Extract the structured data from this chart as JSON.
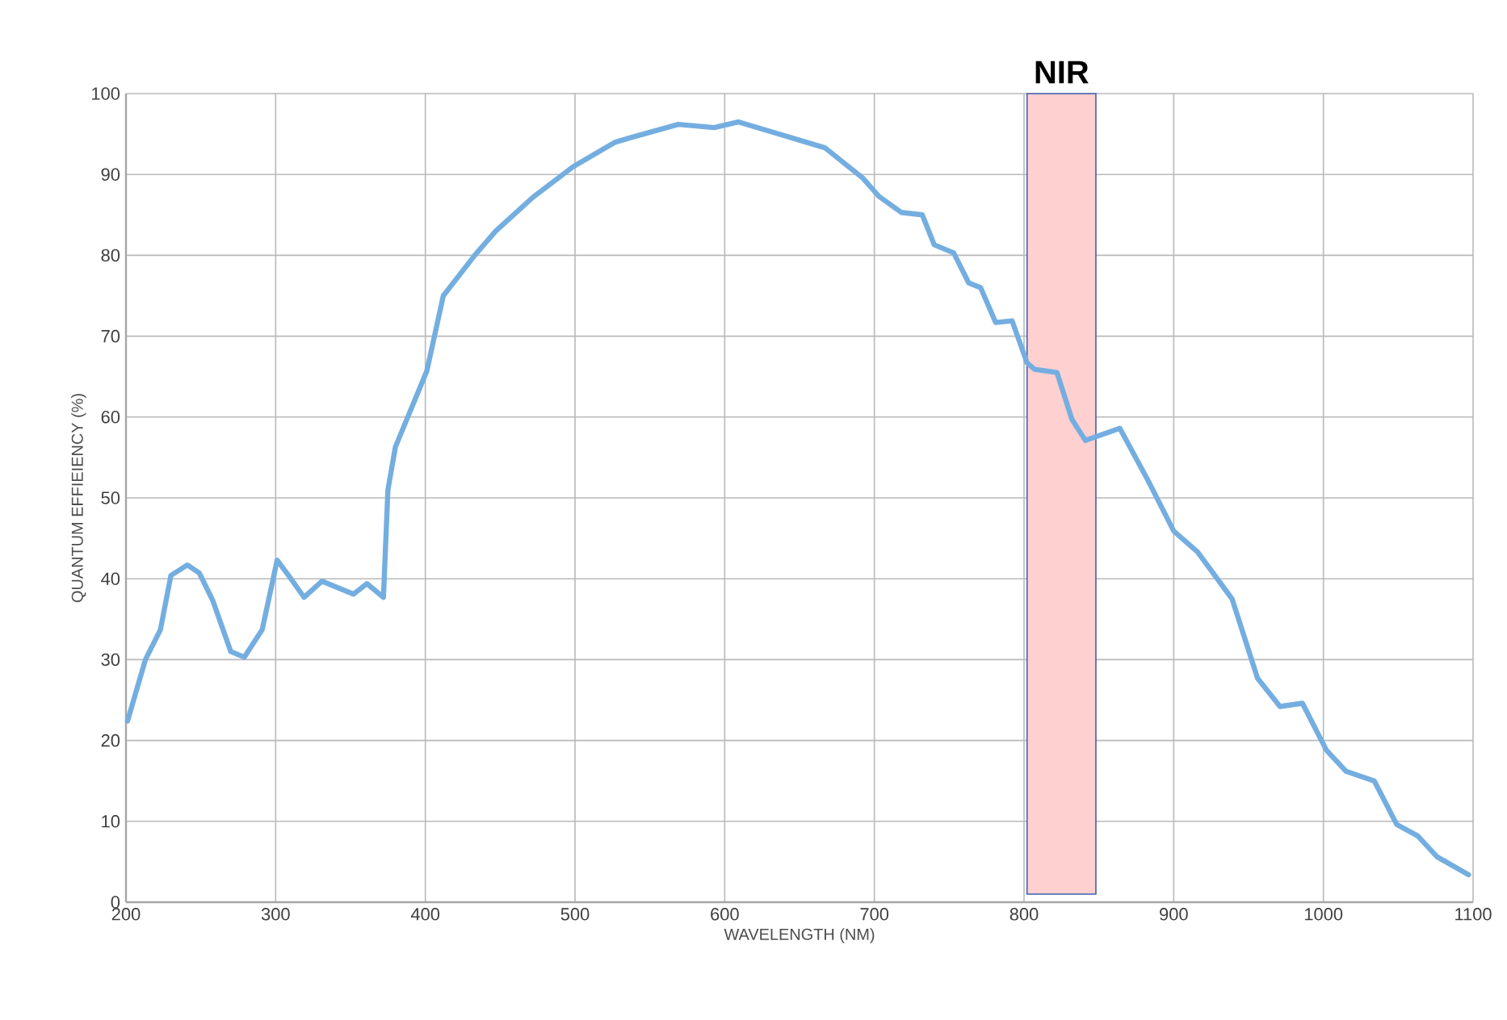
{
  "chart_data": {
    "type": "line",
    "xlabel": "WAVELENGTH (NM)",
    "ylabel": "QUANTUM EFFIEIENCY (%)",
    "xlim": [
      200,
      1100
    ],
    "xticks": [
      200,
      300,
      400,
      500,
      600,
      700,
      800,
      900,
      1000,
      1100
    ],
    "ylim": [
      0,
      100
    ],
    "yticks": [
      0,
      10,
      20,
      30,
      40,
      50,
      60,
      70,
      80,
      90,
      100
    ],
    "grid": true,
    "series": [
      {
        "color": "#74aee0",
        "x": [
          201,
          213,
          223,
          230,
          241,
          249,
          258,
          270,
          279,
          291,
          301,
          309,
          319,
          331,
          352,
          361,
          372,
          375,
          380,
          401,
          412,
          433,
          447,
          472,
          499,
          527,
          538,
          569,
          593,
          609,
          667,
          692,
          703,
          718,
          732,
          740,
          753,
          763,
          771,
          781,
          792,
          802,
          807,
          822,
          832,
          841,
          864,
          883,
          900,
          916,
          939,
          956,
          971,
          986,
          1002,
          1015,
          1034,
          1049,
          1063,
          1076,
          1097
        ],
        "values": [
          22.4,
          30,
          33.7,
          40.4,
          41.7,
          40.7,
          37.3,
          31,
          30.3,
          33.7,
          42.3,
          40.3,
          37.7,
          39.7,
          38.1,
          39.4,
          37.7,
          51,
          56.3,
          65.7,
          75,
          80,
          83,
          87.2,
          91,
          94,
          94.6,
          96.2,
          95.8,
          96.5,
          93.3,
          89.6,
          87.3,
          85.3,
          85,
          81.3,
          80.3,
          76.6,
          76,
          71.7,
          71.9,
          66.7,
          65.9,
          65.5,
          59.7,
          57.1,
          58.6,
          52.1,
          45.9,
          43.3,
          37.5,
          27.7,
          24.2,
          24.6,
          18.8,
          16.2,
          15,
          9.6,
          8.2,
          5.6,
          3.4
        ]
      }
    ],
    "bands": [
      {
        "axis": "x",
        "from": 802,
        "to": 848,
        "label": "NIR",
        "color": "#ffd0d0"
      }
    ]
  }
}
